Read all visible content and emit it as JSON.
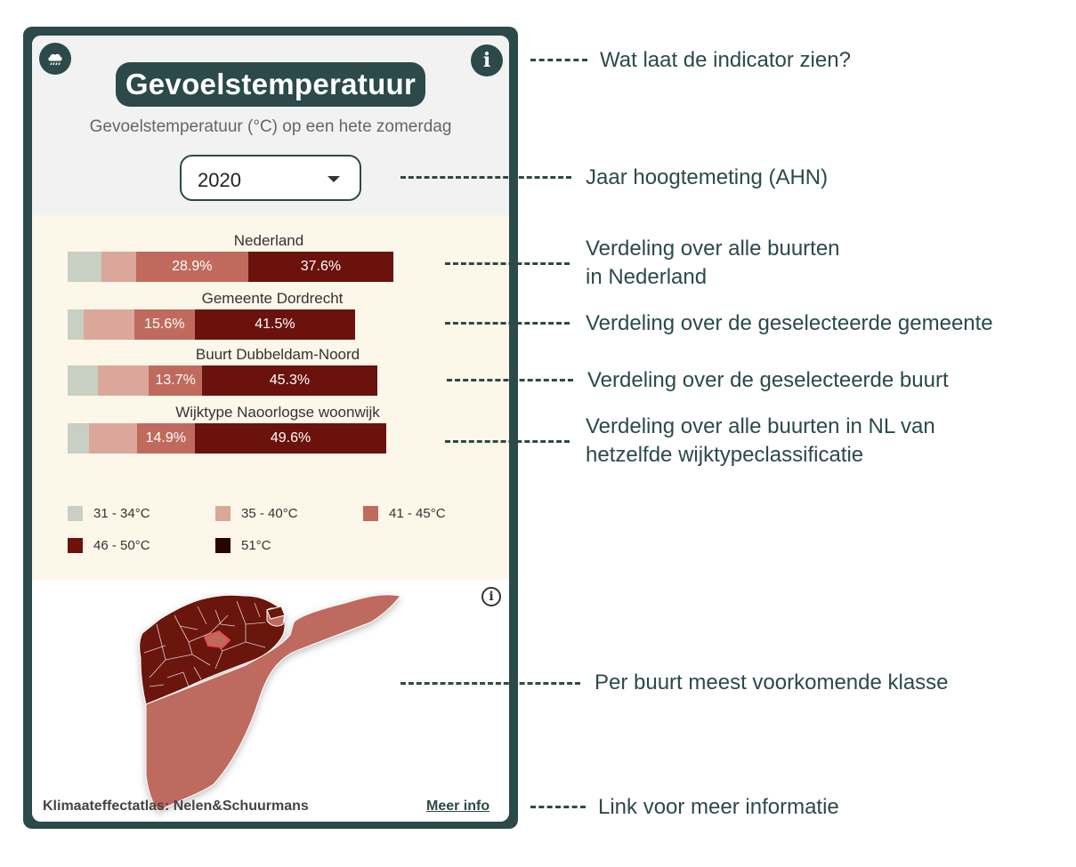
{
  "widget": {
    "title": "Gevoelstemperatuur",
    "subtitle": "Gevoelstemperatuur (°C) op een hete zomerdag",
    "year_select": {
      "value": "2020"
    },
    "icons": {
      "weather": "rain-cloud-icon",
      "info": "info-icon"
    },
    "info_glyph": "i",
    "map_info_glyph": "i",
    "rows": [
      {
        "label": "Nederland",
        "segments": [
          {
            "class": "31 - 34°C",
            "value": 8.8,
            "text": ""
          },
          {
            "class": "35 - 40°C",
            "value": 8.9,
            "text": ""
          },
          {
            "class": "41 - 45°C",
            "value": 28.9,
            "text": "28.9%"
          },
          {
            "class": "46 - 50°C",
            "value": 37.6,
            "text": "37.6%"
          }
        ]
      },
      {
        "label": "Gemeente Dordrecht",
        "segments": [
          {
            "class": "31 - 34°C",
            "value": 4.2,
            "text": ""
          },
          {
            "class": "35 - 40°C",
            "value": 13.0,
            "text": ""
          },
          {
            "class": "41 - 45°C",
            "value": 15.6,
            "text": "15.6%"
          },
          {
            "class": "46 - 50°C",
            "value": 41.5,
            "text": "41.5%"
          }
        ]
      },
      {
        "label": "Buurt Dubbeldam-Noord",
        "segments": [
          {
            "class": "31 - 34°C",
            "value": 7.8,
            "text": ""
          },
          {
            "class": "35 - 40°C",
            "value": 13.2,
            "text": ""
          },
          {
            "class": "41 - 45°C",
            "value": 13.7,
            "text": "13.7%"
          },
          {
            "class": "46 - 50°C",
            "value": 45.3,
            "text": "45.3%"
          }
        ]
      },
      {
        "label": "Wijktype Naoorlogse woonwijk",
        "segments": [
          {
            "class": "31 - 34°C",
            "value": 5.6,
            "text": ""
          },
          {
            "class": "35 - 40°C",
            "value": 12.3,
            "text": ""
          },
          {
            "class": "41 - 45°C",
            "value": 14.9,
            "text": "14.9%"
          },
          {
            "class": "46 - 50°C",
            "value": 49.6,
            "text": "49.6%"
          }
        ]
      }
    ],
    "legend": [
      {
        "label": "31 - 34°C",
        "color": "#c7d0c2"
      },
      {
        "label": "35 - 40°C",
        "color": "#dca79b"
      },
      {
        "label": "41 - 45°C",
        "color": "#c06a5e"
      },
      {
        "label": "46 - 50°C",
        "color": "#6b120d"
      },
      {
        "label": "51°C",
        "color": "#260503"
      }
    ],
    "footer": {
      "source": "Klimaateffectatlas: Nelen&Schuurmans",
      "link": "Meer info"
    }
  },
  "annotations": [
    {
      "lines": [
        "Wat laat de indicator zien?"
      ]
    },
    {
      "lines": [
        "Jaar hoogtemeting (AHN)"
      ]
    },
    {
      "lines": [
        "Verdeling over alle buurten",
        "in Nederland"
      ]
    },
    {
      "lines": [
        "Verdeling over de geselecteerde gemeente"
      ]
    },
    {
      "lines": [
        "Verdeling over de geselecteerde buurt"
      ]
    },
    {
      "lines": [
        "Verdeling over alle buurten in NL van",
        "hetzelfde wijktypeclassificatie"
      ]
    },
    {
      "lines": [
        "Per buurt meest voorkomende klasse"
      ]
    },
    {
      "lines": [
        "Link voor meer informatie"
      ]
    }
  ]
}
